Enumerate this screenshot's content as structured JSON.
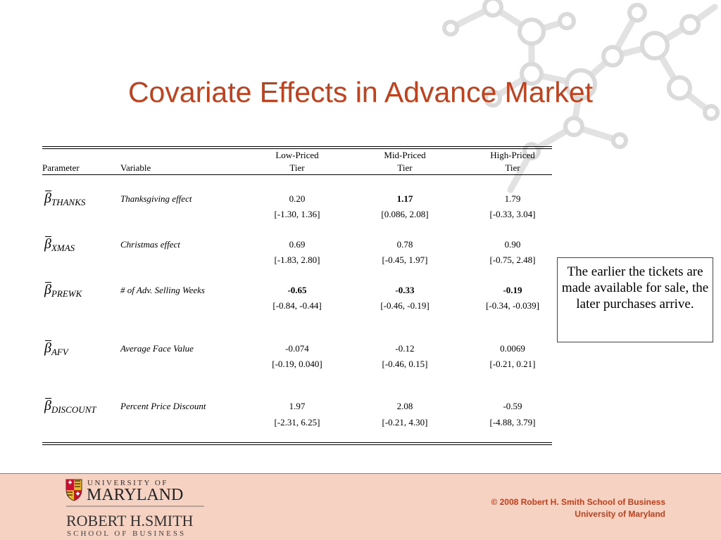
{
  "slide": {
    "title": "Covariate Effects in Advance Market"
  },
  "table": {
    "headers": {
      "parameter": "Parameter",
      "variable": "Variable",
      "low_line1": "Low-Priced",
      "low_line2": "Tier",
      "mid_line1": "Mid-Priced",
      "mid_line2": "Tier",
      "high_line1": "High-Priced",
      "high_line2": "Tier"
    },
    "rows": [
      {
        "param_symbol": "β",
        "param_sub": "THANKS",
        "variable": "Thanksgiving effect",
        "low": "0.20",
        "low_ci": "[-1.30, 1.36]",
        "mid": "1.17",
        "mid_ci": "[0.086, 2.08]",
        "high": "1.79",
        "high_ci": "[-0.33, 3.04]"
      },
      {
        "param_symbol": "β",
        "param_sub": "XMAS",
        "variable": "Christmas effect",
        "low": "0.69",
        "low_ci": "[-1.83, 2.80]",
        "mid": "0.78",
        "mid_ci": "[-0.45, 1.97]",
        "high": "0.90",
        "high_ci": "[-0.75, 2.48]"
      },
      {
        "param_symbol": "β",
        "param_sub": "PREWK",
        "variable": "# of Adv. Selling Weeks",
        "low": "-0.65",
        "low_ci": "[-0.84, -0.44]",
        "mid": "-0.33",
        "mid_ci": "[-0.46, -0.19]",
        "high": "-0.19",
        "high_ci": "[-0.34, -0.039]"
      },
      {
        "param_symbol": "β",
        "param_sub": "AFV",
        "variable": "Average Face Value",
        "low": "-0.074",
        "low_ci": "[-0.19, 0.040]",
        "mid": "-0.12",
        "mid_ci": "[-0.46, 0.15]",
        "high": "0.0069",
        "high_ci": "[-0.21, 0.21]"
      },
      {
        "param_symbol": "β",
        "param_sub": "DISCOUNT",
        "variable": "Percent Price Discount",
        "low": "1.97",
        "low_ci": "[-2.31, 6.25]",
        "mid": "2.08",
        "mid_ci": "[-0.21, 4.30]",
        "high": "-0.59",
        "high_ci": "[-4.88, 3.79]"
      }
    ]
  },
  "note": {
    "text": "The earlier the tickets are made available for sale, the later purchases arrive."
  },
  "footer": {
    "logo": {
      "line1": "UNIVERSITY OF",
      "line2": "MARYLAND",
      "line3": "ROBERT H.SMITH",
      "line4": "SCHOOL OF BUSINESS"
    },
    "copyright_line1": "© 2008 Robert H. Smith School of Business",
    "copyright_line2": "University of Maryland"
  },
  "colors": {
    "title": "#c0411c",
    "footer_bg": "#f5d2c2",
    "logo_red": "#c8102e",
    "logo_gold": "#f2b51d"
  }
}
